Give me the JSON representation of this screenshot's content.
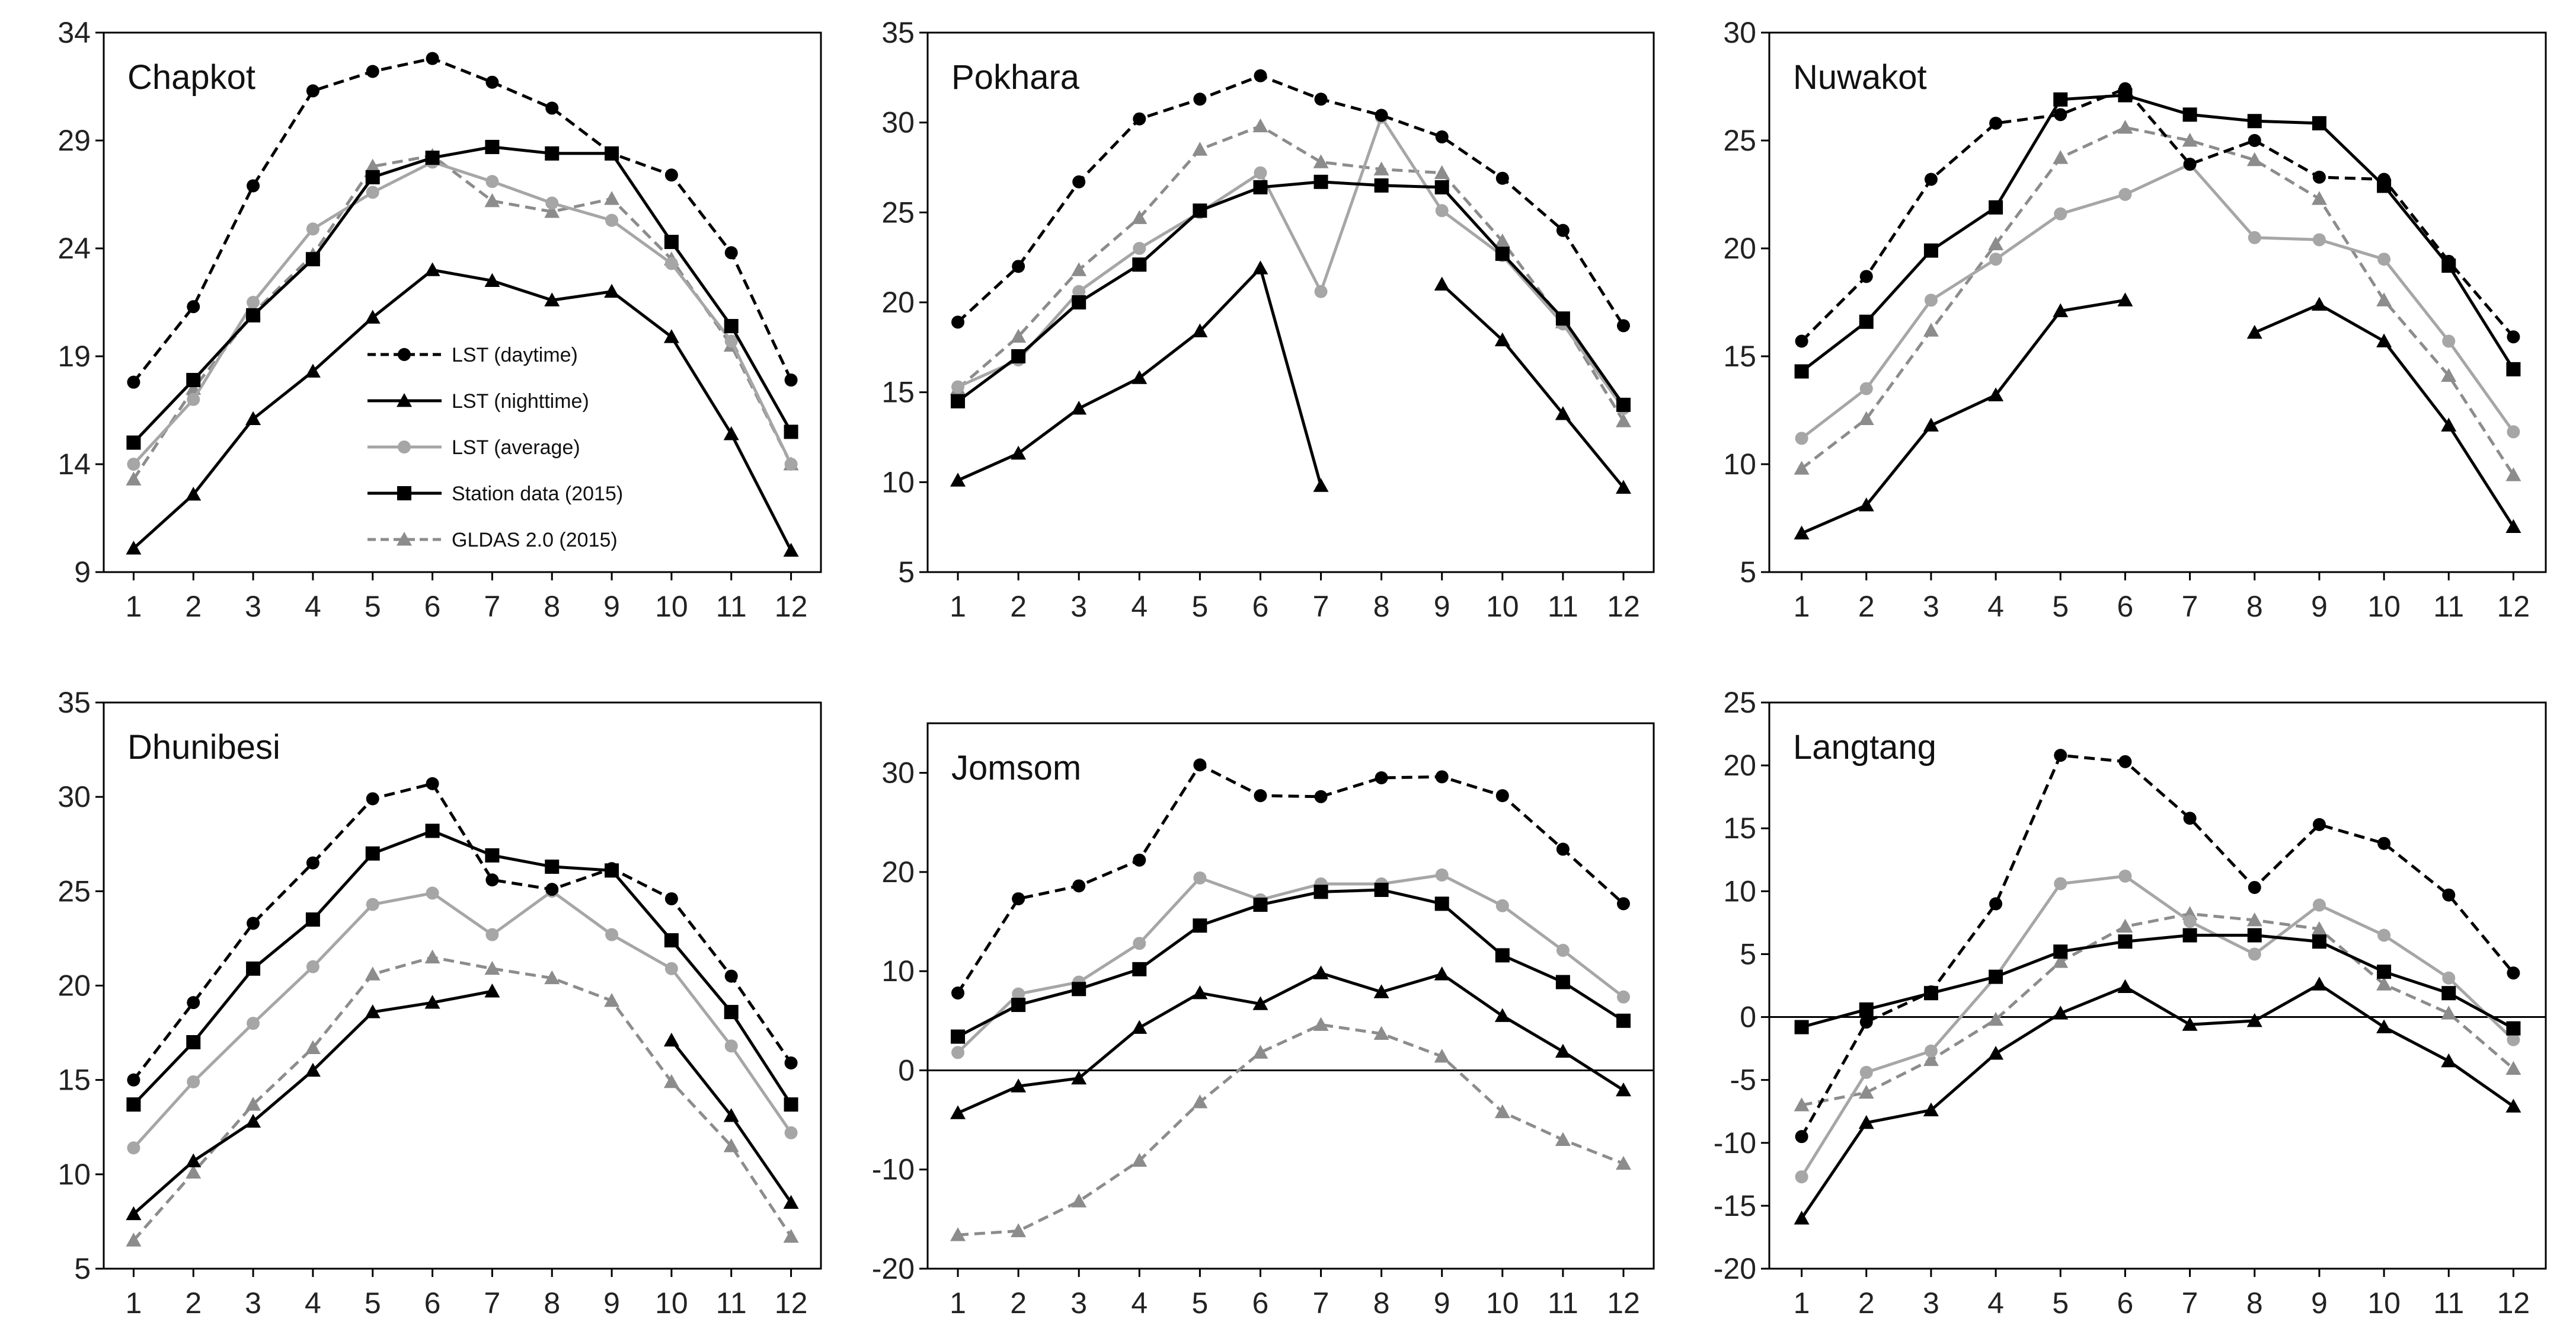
{
  "figure": {
    "legend": [
      {
        "label": "LST (daytime)",
        "series": "day"
      },
      {
        "label": "LST (nighttime)",
        "series": "night"
      },
      {
        "label": "LST (average)",
        "series": "avg"
      },
      {
        "label": "Station data (2015)",
        "series": "station"
      },
      {
        "label": "GLDAS 2.0 (2015)",
        "series": "gldas"
      }
    ],
    "series_styles": {
      "day": {
        "color": "#000000",
        "dash": true,
        "marker": "circle"
      },
      "night": {
        "color": "#000000",
        "dash": false,
        "marker": "triangle"
      },
      "avg": {
        "color": "#a6a6a6",
        "dash": false,
        "marker": "circle"
      },
      "station": {
        "color": "#000000",
        "dash": false,
        "marker": "square"
      },
      "gldas": {
        "color": "#8c8c8c",
        "dash": true,
        "marker": "triangle"
      }
    }
  },
  "chart_data": [
    {
      "type": "line",
      "title": "Chapkot",
      "categories": [
        "1",
        "2",
        "3",
        "4",
        "5",
        "6",
        "7",
        "8",
        "9",
        "10",
        "11",
        "12"
      ],
      "ylim": [
        9,
        34
      ],
      "yticks": [
        "9",
        "14",
        "19",
        "24",
        "29",
        "34"
      ],
      "zero_line": false,
      "series": [
        {
          "name": "LST (daytime)",
          "key": "day",
          "values": [
            17.8,
            21.3,
            26.9,
            31.3,
            32.2,
            32.8,
            31.7,
            30.5,
            28.4,
            27.4,
            23.8,
            17.9
          ]
        },
        {
          "name": "LST (nighttime)",
          "key": "night",
          "values": [
            10.1,
            12.6,
            16.1,
            18.3,
            20.8,
            23.0,
            22.5,
            21.6,
            22.0,
            19.9,
            15.4,
            10.0
          ]
        },
        {
          "name": "LST (average)",
          "key": "avg",
          "values": [
            14.0,
            17.0,
            21.5,
            24.9,
            26.6,
            28.0,
            27.1,
            26.1,
            25.3,
            23.3,
            19.7,
            14.0
          ]
        },
        {
          "name": "Station data (2015)",
          "key": "station",
          "values": [
            15.0,
            17.9,
            20.9,
            23.5,
            27.3,
            28.2,
            28.7,
            28.4,
            28.4,
            24.3,
            20.4,
            15.5
          ]
        },
        {
          "name": "GLDAS 2.0 (2015)",
          "key": "gldas",
          "values": [
            13.3,
            17.5,
            21.0,
            23.7,
            27.8,
            28.3,
            26.2,
            25.7,
            26.3,
            23.5,
            19.5,
            14.0
          ]
        }
      ]
    },
    {
      "type": "line",
      "title": "Pokhara",
      "categories": [
        "1",
        "2",
        "3",
        "4",
        "5",
        "6",
        "7",
        "8",
        "9",
        "10",
        "11",
        "12"
      ],
      "ylim": [
        5,
        35
      ],
      "yticks": [
        "5",
        "10",
        "15",
        "20",
        "25",
        "30",
        "35"
      ],
      "zero_line": false,
      "series": [
        {
          "name": "LST (daytime)",
          "key": "day",
          "values": [
            18.9,
            22.0,
            26.7,
            30.2,
            31.3,
            32.6,
            31.3,
            30.4,
            29.2,
            26.9,
            24.0,
            18.7
          ]
        },
        {
          "name": "LST (nighttime)",
          "key": "night",
          "values": [
            10.1,
            11.6,
            14.1,
            15.8,
            18.4,
            21.9,
            9.8,
            null,
            21.0,
            17.9,
            13.8,
            9.7
          ]
        },
        {
          "name": "LST (average)",
          "key": "avg",
          "values": [
            15.3,
            16.8,
            20.6,
            23.0,
            25.0,
            27.2,
            20.6,
            30.3,
            25.1,
            22.6,
            18.8,
            14.1
          ]
        },
        {
          "name": "Station data (2015)",
          "key": "station",
          "values": [
            14.5,
            17.0,
            20.0,
            22.1,
            25.1,
            26.4,
            26.7,
            26.5,
            26.4,
            22.7,
            19.1,
            14.3
          ]
        },
        {
          "name": "GLDAS 2.0 (2015)",
          "key": "gldas",
          "values": [
            15.2,
            18.1,
            21.8,
            24.7,
            28.5,
            29.8,
            27.8,
            27.4,
            27.2,
            23.4,
            18.9,
            13.4
          ]
        }
      ]
    },
    {
      "type": "line",
      "title": "Nuwakot",
      "categories": [
        "1",
        "2",
        "3",
        "4",
        "5",
        "6",
        "7",
        "8",
        "9",
        "10",
        "11",
        "12"
      ],
      "ylim": [
        5,
        30
      ],
      "yticks": [
        "5",
        "10",
        "15",
        "20",
        "25",
        "30"
      ],
      "zero_line": false,
      "series": [
        {
          "name": "LST (daytime)",
          "key": "day",
          "values": [
            15.7,
            18.7,
            23.2,
            25.8,
            26.2,
            27.4,
            23.9,
            25.0,
            23.3,
            23.2,
            19.4,
            15.9
          ]
        },
        {
          "name": "LST (nighttime)",
          "key": "night",
          "values": [
            6.8,
            8.1,
            11.8,
            13.2,
            17.1,
            17.6,
            null,
            16.1,
            17.4,
            15.7,
            11.8,
            7.1
          ]
        },
        {
          "name": "LST (average)",
          "key": "avg",
          "values": [
            11.2,
            13.5,
            17.6,
            19.5,
            21.6,
            22.5,
            23.9,
            20.5,
            20.4,
            19.5,
            15.7,
            11.5
          ]
        },
        {
          "name": "Station data (2015)",
          "key": "station",
          "values": [
            14.3,
            16.6,
            19.9,
            21.9,
            26.9,
            27.1,
            26.2,
            25.9,
            25.8,
            22.9,
            19.2,
            14.4
          ]
        },
        {
          "name": "GLDAS 2.0 (2015)",
          "key": "gldas",
          "values": [
            9.8,
            12.1,
            16.2,
            20.2,
            24.2,
            25.6,
            25.0,
            24.1,
            22.3,
            17.6,
            14.1,
            9.5
          ]
        }
      ]
    },
    {
      "type": "line",
      "title": "Dhunibesi",
      "categories": [
        "1",
        "2",
        "3",
        "4",
        "5",
        "6",
        "7",
        "8",
        "9",
        "10",
        "11",
        "12"
      ],
      "ylim": [
        5,
        35
      ],
      "yticks": [
        "5",
        "10",
        "15",
        "20",
        "25",
        "30",
        "35"
      ],
      "zero_line": false,
      "series": [
        {
          "name": "LST (daytime)",
          "key": "day",
          "values": [
            15.0,
            19.1,
            23.3,
            26.5,
            29.9,
            30.7,
            25.6,
            25.1,
            26.2,
            24.6,
            20.5,
            15.9
          ]
        },
        {
          "name": "LST (nighttime)",
          "key": "night",
          "values": [
            7.9,
            10.7,
            12.8,
            15.5,
            18.6,
            19.1,
            19.7,
            null,
            null,
            17.1,
            13.1,
            8.5
          ]
        },
        {
          "name": "LST (average)",
          "key": "avg",
          "values": [
            11.4,
            14.9,
            18.0,
            21.0,
            24.3,
            24.9,
            22.7,
            25.0,
            22.7,
            20.9,
            16.8,
            12.2
          ]
        },
        {
          "name": "Station data (2015)",
          "key": "station",
          "values": [
            13.7,
            17.0,
            20.9,
            23.5,
            27.0,
            28.2,
            26.9,
            26.3,
            26.1,
            22.4,
            18.6,
            13.7
          ]
        },
        {
          "name": "GLDAS 2.0 (2015)",
          "key": "gldas",
          "values": [
            6.5,
            10.1,
            13.7,
            16.7,
            20.6,
            21.5,
            20.9,
            20.4,
            19.2,
            14.9,
            11.5,
            6.7
          ]
        }
      ]
    },
    {
      "type": "line",
      "title": "Jomsom",
      "categories": [
        "1",
        "2",
        "3",
        "4",
        "5",
        "6",
        "7",
        "8",
        "9",
        "10",
        "11",
        "12"
      ],
      "ylim": [
        -20,
        35
      ],
      "yticks": [
        "-20",
        "-10",
        "0",
        "10",
        "20",
        "30"
      ],
      "zero_line": true,
      "series": [
        {
          "name": "LST (daytime)",
          "key": "day",
          "values": [
            7.8,
            17.3,
            18.6,
            21.2,
            30.8,
            27.7,
            27.6,
            29.5,
            29.6,
            27.7,
            22.3,
            16.8
          ]
        },
        {
          "name": "LST (nighttime)",
          "key": "night",
          "values": [
            -4.3,
            -1.6,
            -0.8,
            4.3,
            7.8,
            6.7,
            9.8,
            7.9,
            9.7,
            5.5,
            1.9,
            -2.0
          ]
        },
        {
          "name": "LST (average)",
          "key": "avg",
          "values": [
            1.8,
            7.7,
            8.9,
            12.8,
            19.4,
            17.2,
            18.8,
            18.8,
            19.7,
            16.6,
            12.1,
            7.4
          ]
        },
        {
          "name": "Station data (2015)",
          "key": "station",
          "values": [
            3.4,
            6.6,
            8.2,
            10.2,
            14.6,
            16.7,
            18.0,
            18.2,
            16.8,
            11.6,
            8.9,
            5.0
          ]
        },
        {
          "name": "GLDAS 2.0 (2015)",
          "key": "gldas",
          "values": [
            -16.6,
            -16.2,
            -13.2,
            -9.1,
            -3.2,
            1.8,
            4.6,
            3.7,
            1.4,
            -4.2,
            -7.0,
            -9.4
          ]
        }
      ]
    },
    {
      "type": "line",
      "title": "Langtang",
      "categories": [
        "1",
        "2",
        "3",
        "4",
        "5",
        "6",
        "7",
        "8",
        "9",
        "10",
        "11",
        "12"
      ],
      "ylim": [
        -20,
        25
      ],
      "yticks": [
        "-20",
        "-15",
        "-10",
        "-5",
        "0",
        "5",
        "10",
        "15",
        "20",
        "25"
      ],
      "zero_line": true,
      "series": [
        {
          "name": "LST (daytime)",
          "key": "day",
          "values": [
            -9.5,
            -0.4,
            2.0,
            9.0,
            20.8,
            20.3,
            15.8,
            10.3,
            15.3,
            13.8,
            9.7,
            3.5
          ]
        },
        {
          "name": "LST (nighttime)",
          "key": "night",
          "values": [
            -16.0,
            -8.4,
            -7.4,
            -2.9,
            0.3,
            2.4,
            -0.6,
            -0.3,
            2.6,
            -0.8,
            -3.5,
            -7.1
          ]
        },
        {
          "name": "LST (average)",
          "key": "avg",
          "values": [
            -12.7,
            -4.4,
            -2.7,
            3.2,
            10.6,
            11.2,
            7.6,
            5.0,
            8.9,
            6.5,
            3.1,
            -1.8
          ]
        },
        {
          "name": "Station data (2015)",
          "key": "station",
          "values": [
            -0.8,
            0.6,
            1.9,
            3.2,
            5.2,
            6.0,
            6.5,
            6.5,
            6.0,
            3.6,
            1.9,
            -0.9
          ]
        },
        {
          "name": "GLDAS 2.0 (2015)",
          "key": "gldas",
          "values": [
            -7.0,
            -6.0,
            -3.4,
            -0.2,
            4.4,
            7.2,
            8.2,
            7.7,
            7.0,
            2.6,
            0.3,
            -4.1
          ]
        }
      ]
    }
  ]
}
